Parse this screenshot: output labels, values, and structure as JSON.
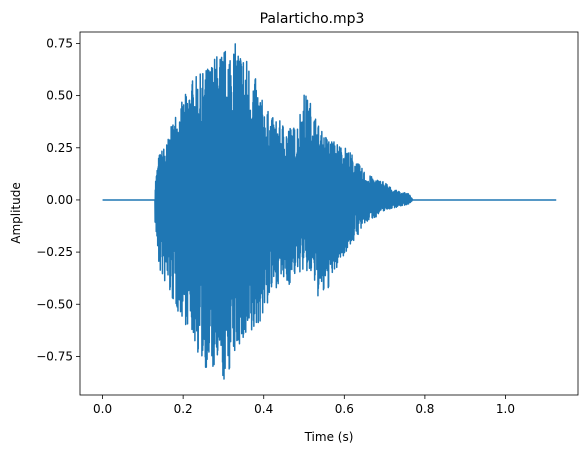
{
  "chart_data": {
    "type": "line",
    "title": "Palarticho.mp3",
    "xlabel": "Time (s)",
    "ylabel": "Amplitude",
    "xlim": [
      -0.056,
      1.18
    ],
    "ylim": [
      -0.935,
      0.805
    ],
    "xticks": [
      0.0,
      0.2,
      0.4,
      0.6,
      0.8,
      1.0
    ],
    "xtick_labels": [
      "0.0",
      "0.2",
      "0.4",
      "0.6",
      "0.8",
      "1.0"
    ],
    "yticks": [
      -0.75,
      -0.5,
      -0.25,
      0.0,
      0.25,
      0.5,
      0.75
    ],
    "ytick_labels": [
      "−0.75",
      "−0.50",
      "−0.25",
      "0.00",
      "0.25",
      "0.50",
      "0.75"
    ],
    "grid": false,
    "legend": "none",
    "series": [
      {
        "color": "#1f77b4",
        "duration_s": 1.126,
        "silence_before_s": 0.13,
        "silence_after_s": 0.77,
        "envelope": {
          "t": [
            0.13,
            0.14,
            0.16,
            0.18,
            0.2,
            0.22,
            0.24,
            0.26,
            0.28,
            0.3,
            0.32,
            0.34,
            0.36,
            0.38,
            0.4,
            0.42,
            0.44,
            0.46,
            0.48,
            0.5,
            0.52,
            0.54,
            0.56,
            0.58,
            0.6,
            0.62,
            0.64,
            0.66,
            0.68,
            0.7,
            0.72,
            0.74,
            0.76,
            0.77
          ],
          "max": [
            0.08,
            0.22,
            0.28,
            0.42,
            0.48,
            0.58,
            0.6,
            0.64,
            0.7,
            0.72,
            0.76,
            0.74,
            0.68,
            0.58,
            0.46,
            0.4,
            0.38,
            0.36,
            0.35,
            0.52,
            0.46,
            0.34,
            0.3,
            0.28,
            0.26,
            0.22,
            0.16,
            0.12,
            0.1,
            0.09,
            0.05,
            0.04,
            0.03,
            0.0
          ],
          "min": [
            -0.1,
            -0.34,
            -0.43,
            -0.52,
            -0.58,
            -0.64,
            -0.76,
            -0.82,
            -0.84,
            -0.89,
            -0.8,
            -0.7,
            -0.74,
            -0.63,
            -0.55,
            -0.46,
            -0.39,
            -0.42,
            -0.36,
            -0.34,
            -0.38,
            -0.5,
            -0.43,
            -0.34,
            -0.26,
            -0.21,
            -0.15,
            -0.1,
            -0.08,
            -0.05,
            -0.04,
            -0.03,
            -0.02,
            0.0
          ]
        }
      }
    ]
  }
}
